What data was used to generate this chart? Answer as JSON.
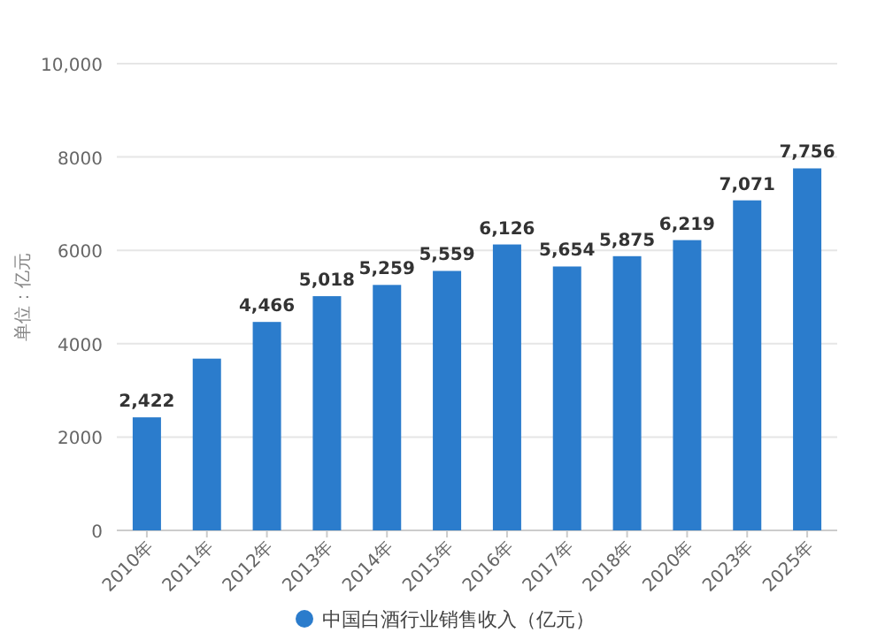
{
  "chart_data": {
    "type": "bar",
    "ylabel": "单位：亿元",
    "categories": [
      "2010年",
      "2011年",
      "2012年",
      "2013年",
      "2014年",
      "2015年",
      "2016年",
      "2017年",
      "2018年",
      "2020年",
      "2023年",
      "2025年"
    ],
    "series": [
      {
        "name": "中国白酒行业销售收入（亿元）",
        "color": "#2b7ccc",
        "values": [
          2422,
          3680,
          4466,
          5018,
          5259,
          5559,
          6126,
          5654,
          5875,
          6219,
          7071,
          7756
        ],
        "value_labels": [
          "2,422",
          null,
          "4,466",
          "5,018",
          "5,259",
          "5,559",
          "6,126",
          "5,654",
          "5,875",
          "6,219",
          "7,071",
          "7,756"
        ]
      }
    ],
    "ylim": [
      0,
      10000
    ],
    "yticks": [
      0,
      2000,
      4000,
      6000,
      8000,
      {
        "value": 10000,
        "label": "10,000"
      }
    ],
    "grid": "y",
    "legend": "bottom"
  }
}
